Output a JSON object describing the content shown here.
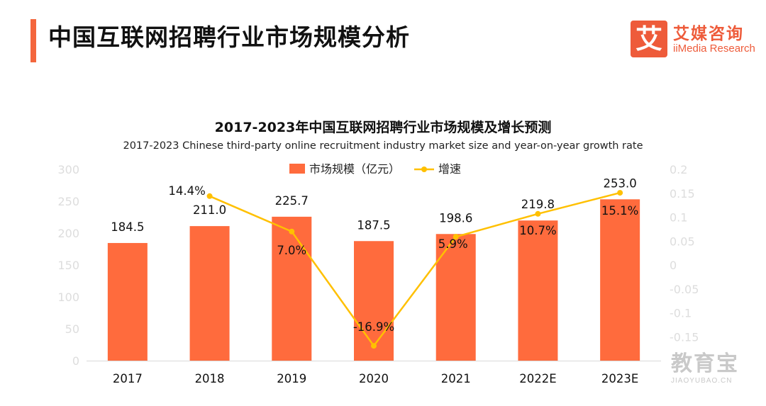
{
  "header": {
    "title": "中国互联网招聘行业市场规模分析"
  },
  "brand": {
    "mark": "艾",
    "name_cn": "艾媒咨询",
    "name_en": "iiMedia Research",
    "color": "#ee5b3a"
  },
  "watermark": {
    "cn": "教育宝",
    "en": "JIAOYUBAO.CN"
  },
  "chart_data": {
    "type": "bar",
    "title": "2017-2023年中国互联网招聘行业市场规模及增长预测",
    "subtitle": "2017-2023 Chinese third-party online recruitment industry market size and year-on-year growth rate",
    "categories": [
      "2017",
      "2018",
      "2019",
      "2020",
      "2021",
      "2022E",
      "2023E"
    ],
    "series": [
      {
        "name": "市场规模（亿元）",
        "type": "bar",
        "axis": "left",
        "color": "#ff6b3d",
        "values": [
          184.5,
          211.0,
          225.7,
          187.5,
          198.6,
          219.8,
          253.0
        ],
        "labels": [
          "184.5",
          "211.0",
          "225.7",
          "187.5",
          "198.6",
          "219.8",
          "253.0"
        ]
      },
      {
        "name": "增速",
        "type": "line",
        "axis": "right",
        "color": "#ffc000",
        "values": [
          null,
          0.144,
          0.07,
          -0.169,
          0.059,
          0.107,
          0.151
        ],
        "labels": [
          "",
          "14.4%",
          "7.0%",
          "-16.9%",
          "5.9%",
          "10.7%",
          "15.1%"
        ]
      }
    ],
    "y_left": {
      "range": [
        0,
        300
      ],
      "ticks": [
        "0",
        "50",
        "100",
        "150",
        "200",
        "250",
        "300"
      ]
    },
    "y_right": {
      "range": [
        -0.2,
        0.2
      ],
      "ticks": [
        "-0.15",
        "-0.1",
        "-0.05",
        "0",
        "0.05",
        "0.1",
        "0.15",
        "0.2"
      ]
    },
    "legend": "top-center",
    "grid": false
  }
}
